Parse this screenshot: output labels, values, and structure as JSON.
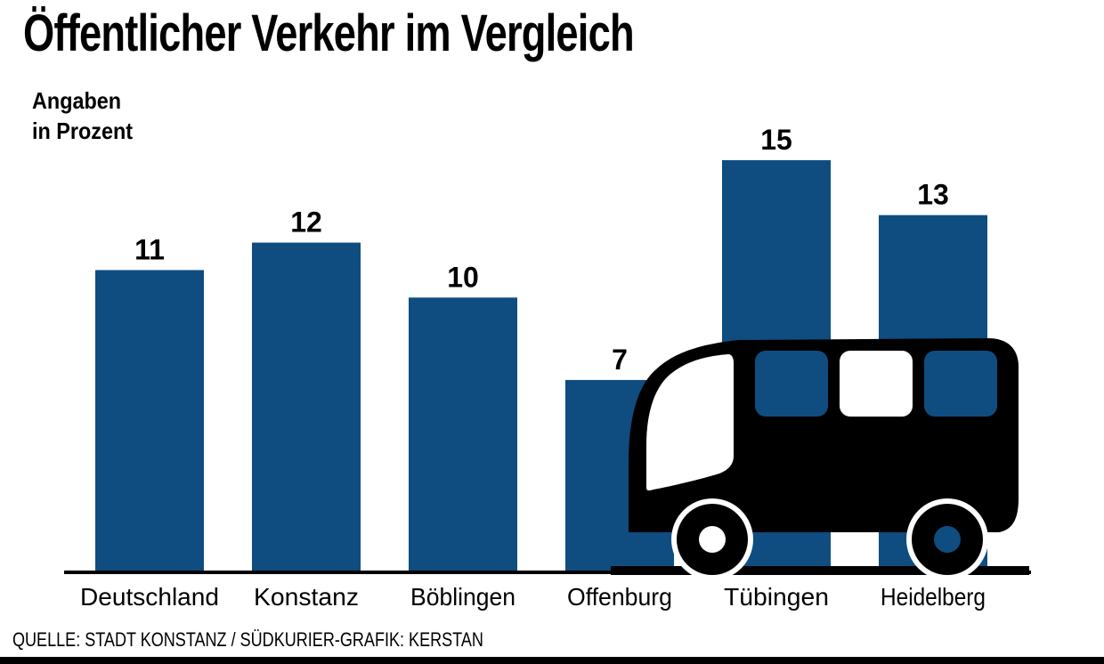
{
  "title": "Öffentlicher Verkehr im Vergleich",
  "unit_line1": "Angaben",
  "unit_line2": "in Prozent",
  "source": "QUELLE: STADT KONSTANZ / SÜDKURIER-GRAFIK: KERSTAN",
  "bar_color": "#0f4c80",
  "illustration_icon": "bus-icon",
  "chart_data": {
    "type": "bar",
    "title": "Öffentlicher Verkehr im Vergleich",
    "ylabel": "Angaben in Prozent",
    "xlabel": "",
    "categories": [
      "Deutschland",
      "Konstanz",
      "Böblingen",
      "Offenburg",
      "Tübingen",
      "Heidelberg"
    ],
    "values": [
      11,
      12,
      10,
      7,
      15,
      13
    ],
    "value_labels": [
      "11",
      "12",
      "10",
      "7",
      "15",
      "13"
    ],
    "ylim": [
      0,
      15
    ],
    "grid": false,
    "legend": "none"
  }
}
